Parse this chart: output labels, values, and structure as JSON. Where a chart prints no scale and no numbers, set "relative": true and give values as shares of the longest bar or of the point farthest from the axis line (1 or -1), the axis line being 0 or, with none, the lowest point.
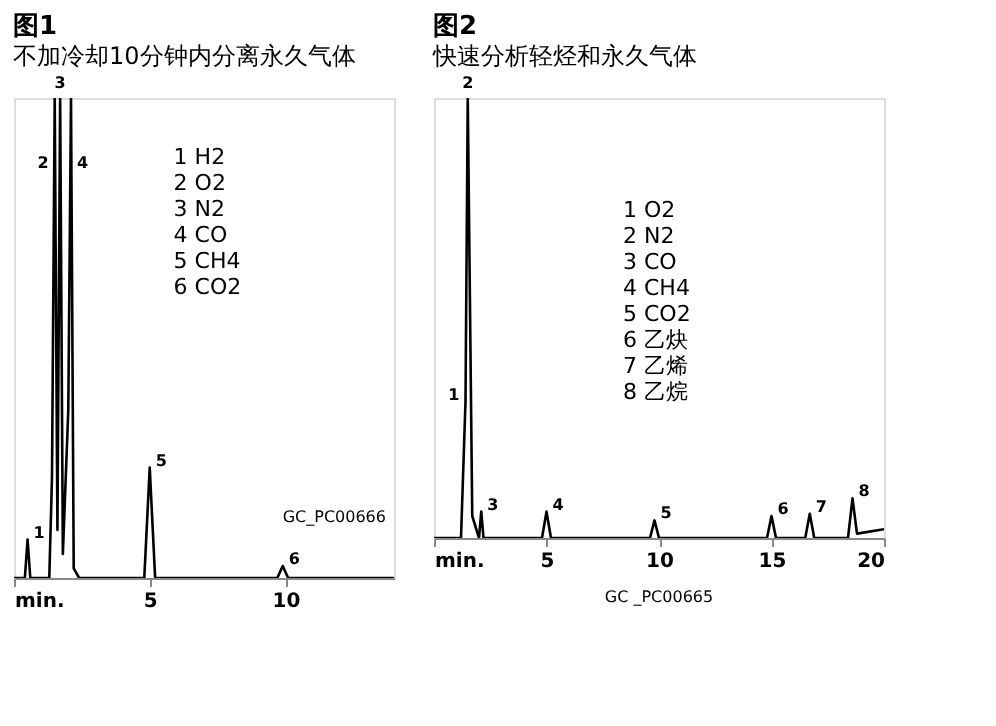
{
  "chart_data": [
    {
      "type": "line",
      "title": "图1",
      "subtitle": "不加冷却10分钟内分离永久气体",
      "relative": true,
      "x": [
        0,
        0.4,
        0.5,
        0.6,
        1.3,
        1.4,
        1.5,
        1.6,
        1.7,
        1.8,
        2.0,
        2.1,
        2.2,
        2.4,
        4.8,
        5.0,
        5.2,
        9.7,
        9.9,
        10.1,
        14
      ],
      "series": [
        {
          "color": "#000000",
          "values": [
            0,
            0,
            0.08,
            0,
            0,
            0.21,
            1,
            0.1,
            1,
            0.05,
            0.35,
            1,
            0.02,
            0,
            0,
            0.23,
            0,
            0,
            0.025,
            0,
            0
          ]
        }
      ],
      "xlim": [
        0,
        14
      ],
      "xticks": [
        {
          "value": 0,
          "label": "min."
        },
        5,
        10
      ],
      "tick_labels": "x",
      "grid": false,
      "annotations": [
        {
          "text": "1",
          "x": 0.5,
          "y": 0.08
        },
        {
          "text": "2",
          "x": 1.5,
          "y": 0.85
        },
        {
          "text": "3",
          "x": 1.7,
          "y": 1
        },
        {
          "text": "4",
          "x": 2.1,
          "y": 0.85
        },
        {
          "text": "5",
          "x": 5.0,
          "y": 0.23
        },
        {
          "text": "6",
          "x": 9.9,
          "y": 0.025
        },
        "1  H2",
        "2  O2",
        "3  N2",
        "4  CO",
        "5  CH4",
        "6  CO2",
        "GC_PC00666"
      ]
    },
    {
      "type": "line",
      "title": "图2",
      "subtitle": "快速分析轻烃和永久气体",
      "relative": true,
      "x": [
        0,
        1.2,
        1.4,
        1.5,
        1.7,
        2.0,
        2.1,
        2.2,
        4.8,
        5.0,
        5.2,
        9.6,
        9.8,
        10.0,
        14.8,
        15.0,
        15.2,
        16.5,
        16.7,
        16.9,
        18.4,
        18.6,
        18.8,
        20
      ],
      "series": [
        {
          "color": "#000000",
          "values": [
            0,
            0,
            0.31,
            1,
            0.05,
            0,
            0.06,
            0,
            0,
            0.06,
            0,
            0,
            0.04,
            0,
            0,
            0.05,
            0,
            0,
            0.055,
            0,
            0,
            0.09,
            0.01,
            0.02
          ]
        }
      ],
      "xlim": [
        0,
        20
      ],
      "xticks": [
        {
          "value": 0,
          "label": "min."
        },
        5,
        10,
        15,
        20
      ],
      "tick_labels": "x",
      "grid": false,
      "annotations": [
        {
          "text": "1",
          "x": 1.4,
          "y": 0.31
        },
        {
          "text": "2",
          "x": 1.5,
          "y": 1
        },
        {
          "text": "3",
          "x": 2.1,
          "y": 0.06
        },
        {
          "text": "4",
          "x": 5.0,
          "y": 0.06
        },
        {
          "text": "5",
          "x": 9.8,
          "y": 0.04
        },
        {
          "text": "6",
          "x": 15.0,
          "y": 0.05
        },
        {
          "text": "7",
          "x": 16.7,
          "y": 0.055
        },
        {
          "text": "8",
          "x": 18.6,
          "y": 0.09
        },
        "1  O2",
        "2  N2",
        "3  CO",
        "4  CH4",
        "5  CO2",
        "6  乙炔",
        "7  乙烯",
        "8  乙烷",
        "GC _PC00665"
      ]
    }
  ]
}
